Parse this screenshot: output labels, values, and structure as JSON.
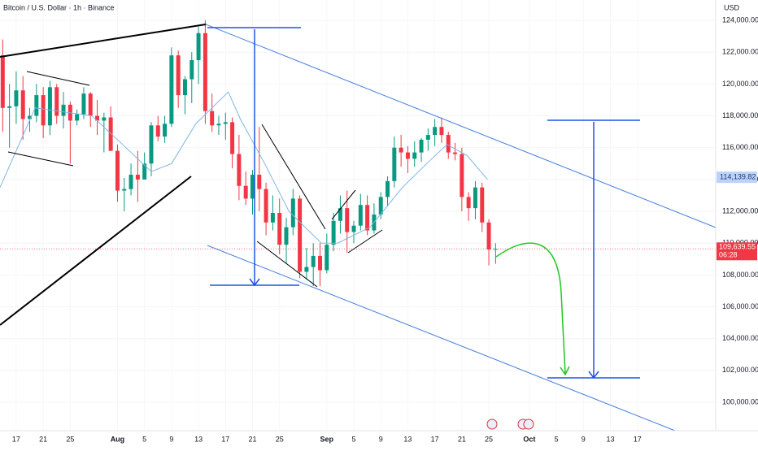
{
  "chart_data": {
    "type": "candlestick",
    "title": "Bitcoin / U.S. Dollar · 1h · Binance",
    "currency": "USD",
    "up_color": "#089981",
    "down_color": "#f23645",
    "xlim": [
      14.6,
      120.6
    ],
    "ylim": [
      98470,
      125280
    ],
    "xticks": [
      {
        "value": 17,
        "label": "17"
      },
      {
        "value": 21,
        "label": "21"
      },
      {
        "value": 25,
        "label": "25"
      },
      {
        "value": 32,
        "label": "Aug"
      },
      {
        "value": 36,
        "label": "5"
      },
      {
        "value": 40,
        "label": "9"
      },
      {
        "value": 44,
        "label": "13"
      },
      {
        "value": 48,
        "label": "17"
      },
      {
        "value": 52,
        "label": "21"
      },
      {
        "value": 56,
        "label": "25"
      },
      {
        "value": 63,
        "label": "Sep"
      },
      {
        "value": 67,
        "label": "5"
      },
      {
        "value": 71,
        "label": "9"
      },
      {
        "value": 75,
        "label": "13"
      },
      {
        "value": 79,
        "label": "17"
      },
      {
        "value": 83,
        "label": "21"
      },
      {
        "value": 87,
        "label": "25"
      },
      {
        "value": 93,
        "label": "Oct"
      },
      {
        "value": 97,
        "label": "5"
      },
      {
        "value": 101,
        "label": "9"
      },
      {
        "value": 105,
        "label": "13"
      },
      {
        "value": 109,
        "label": "17"
      }
    ],
    "yticks": [
      {
        "value": 100000,
        "label": "100,000.00"
      },
      {
        "value": 102000,
        "label": "102,000.00"
      },
      {
        "value": 104000,
        "label": "104,000.00"
      },
      {
        "value": 106000,
        "label": "106,000.00"
      },
      {
        "value": 108000,
        "label": "108,000.00"
      },
      {
        "value": 110000,
        "label": "110,000.00"
      },
      {
        "value": 112000,
        "label": "112,000.00"
      },
      {
        "value": 114000,
        "label": "114,000.00"
      },
      {
        "value": 116000,
        "label": "116,000.00"
      },
      {
        "value": 118000,
        "label": "118,000.00"
      },
      {
        "value": 120000,
        "label": "120,000.00"
      },
      {
        "value": 122000,
        "label": "122,000.00"
      },
      {
        "value": 124000,
        "label": "124,000.00"
      }
    ],
    "x": [
      15,
      16,
      17,
      18,
      19,
      20,
      21,
      22,
      23,
      24,
      25,
      26,
      27,
      28,
      29,
      30,
      31,
      32,
      33,
      34,
      35,
      36,
      37,
      38,
      39,
      40,
      41,
      42,
      43,
      44,
      45,
      46,
      47,
      48,
      49,
      50,
      51,
      52,
      53,
      54,
      55,
      56,
      57,
      58,
      59,
      60,
      61,
      62,
      63,
      64,
      65,
      66,
      67,
      68,
      69,
      70,
      71,
      72,
      73,
      74,
      75,
      76,
      77,
      78,
      79,
      80,
      81,
      82,
      83,
      84,
      85,
      86,
      87,
      88
    ],
    "open": [
      121800,
      118500,
      118600,
      119600,
      117800,
      118000,
      119300,
      117400,
      119800,
      118000,
      118700,
      117700,
      118100,
      119400,
      118000,
      117700,
      117900,
      115800,
      113300,
      113400,
      114300,
      114000,
      115000,
      117400,
      116700,
      117500,
      121800,
      119300,
      120300,
      121500,
      123200,
      118300,
      117400,
      117500,
      117600,
      115600,
      113600,
      112800,
      114300,
      113400,
      111300,
      111900,
      109900,
      111000,
      112800,
      108200,
      108500,
      109200,
      108300,
      109900,
      111400,
      112200,
      110700,
      111100,
      112400,
      110800,
      111800,
      112900,
      113900,
      116000,
      115700,
      115300,
      115700,
      116500,
      116800,
      117300,
      116800,
      115700,
      115600,
      112900,
      112200,
      113500,
      111300,
      109600
    ],
    "high": [
      122800,
      120000,
      120800,
      120500,
      118500,
      120000,
      119800,
      120200,
      120000,
      119500,
      118900,
      118400,
      119800,
      119500,
      119000,
      118200,
      118600,
      116200,
      114100,
      115000,
      115800,
      115700,
      117600,
      118000,
      118000,
      122300,
      122100,
      120500,
      122000,
      123600,
      124000,
      119400,
      118000,
      118200,
      117900,
      116800,
      114500,
      114600,
      117300,
      113800,
      113000,
      112800,
      111600,
      113400,
      113000,
      109700,
      110000,
      110000,
      110600,
      111900,
      113000,
      113300,
      111400,
      113100,
      113000,
      112500,
      113200,
      114200,
      116700,
      116800,
      116100,
      116400,
      116600,
      117200,
      117800,
      117900,
      117000,
      116300,
      116000,
      113200,
      113900,
      113800,
      111500,
      110000
    ],
    "low": [
      117000,
      116000,
      117500,
      116500,
      117000,
      117600,
      116600,
      116800,
      117500,
      117200,
      115000,
      117400,
      117800,
      117300,
      116800,
      115700,
      115800,
      112600,
      112000,
      113000,
      112600,
      114000,
      114200,
      116400,
      116300,
      117300,
      118500,
      118100,
      118800,
      120000,
      117500,
      117000,
      116800,
      116500,
      114700,
      112700,
      112400,
      111800,
      112000,
      110500,
      110800,
      109300,
      108700,
      110500,
      107800,
      107700,
      107300,
      107300,
      108100,
      109500,
      110600,
      109400,
      110000,
      110800,
      110500,
      110600,
      111500,
      112300,
      113500,
      114800,
      114400,
      114800,
      115100,
      115800,
      116100,
      116300,
      115300,
      115200,
      112000,
      111400,
      111500,
      110700,
      108600,
      108700
    ],
    "close": [
      118500,
      118600,
      119600,
      117800,
      118000,
      119300,
      117400,
      119800,
      118000,
      118700,
      117700,
      118100,
      119400,
      118000,
      117700,
      117900,
      115800,
      113300,
      113400,
      114300,
      114000,
      115000,
      117400,
      116700,
      117500,
      121800,
      119300,
      120300,
      121500,
      123200,
      118300,
      117400,
      117500,
      117600,
      115600,
      113600,
      112800,
      114300,
      113400,
      111300,
      111900,
      109900,
      111000,
      112800,
      108200,
      108500,
      109200,
      108300,
      109900,
      111400,
      112200,
      110700,
      111100,
      112400,
      110800,
      111800,
      112900,
      113900,
      116000,
      115700,
      115300,
      115700,
      116500,
      116800,
      117300,
      116800,
      115700,
      115600,
      112900,
      112200,
      113500,
      111300,
      109600,
      109639.55
    ],
    "moving_average": {
      "color": "#7fb5e6",
      "x": [
        14.6,
        19.8,
        28.2,
        32,
        37,
        40,
        43.6,
        48.4,
        50.2,
        53.8,
        57.4,
        62.2,
        64.6,
        69.4,
        74.2,
        77.8,
        80.8,
        83.8,
        86.8
      ],
      "values": [
        113500,
        118500,
        118000,
        116500,
        114500,
        115000,
        117500,
        119500,
        117800,
        115000,
        112000,
        110000,
        110000,
        111000,
        113500,
        115000,
        116200,
        115500,
        114000
      ]
    },
    "price_tag": {
      "value": 109639.55,
      "label": "109,639.55",
      "countdown": "06:28"
    },
    "level_tag": {
      "value": 114139.82,
      "label": "114,139.82"
    }
  }
}
